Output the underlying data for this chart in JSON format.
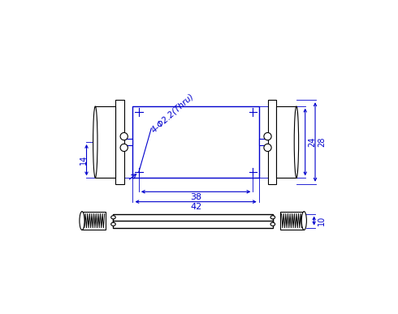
{
  "bg_color": "#ffffff",
  "draw_color": "#0000cd",
  "black_color": "#000000",
  "fig_width": 4.9,
  "fig_height": 3.87,
  "dpi": 100,
  "annotation": "4-Φ2.2(Thru)",
  "dim_labels": {
    "d10": "10",
    "d24": "24",
    "d28": "28",
    "d14": "14",
    "d38": "38",
    "d42": "42"
  }
}
